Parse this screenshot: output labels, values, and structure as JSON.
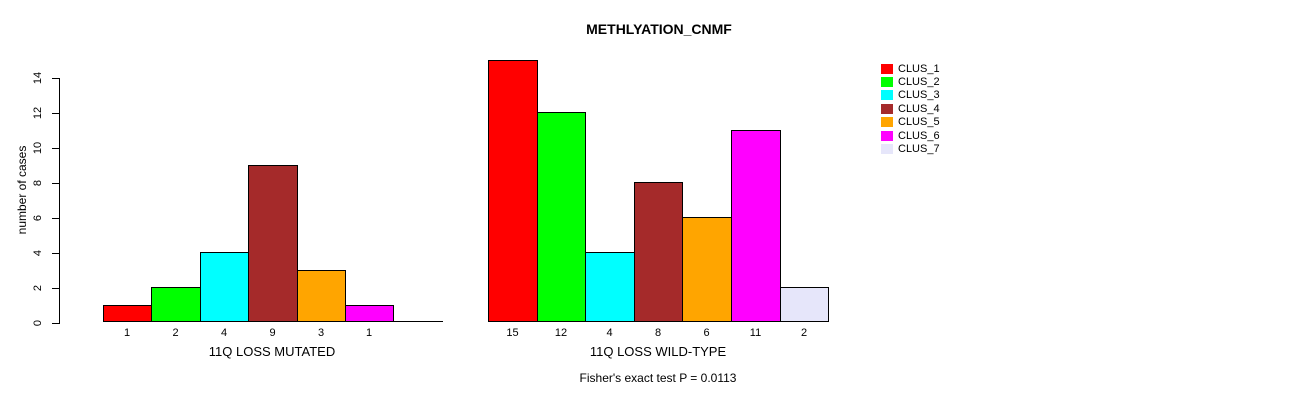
{
  "title": "METHLYATION_CNMF",
  "ylabel": "number of cases",
  "footnote": "Fisher's exact test P = 0.0113",
  "legend": {
    "position": "right",
    "entries": [
      {
        "label": "CLUS_1",
        "color": "#FF0000"
      },
      {
        "label": "CLUS_2",
        "color": "#00FF00"
      },
      {
        "label": "CLUS_3",
        "color": "#00FFFF"
      },
      {
        "label": "CLUS_4",
        "color": "#A52A2A"
      },
      {
        "label": "CLUS_5",
        "color": "#FFA500"
      },
      {
        "label": "CLUS_6",
        "color": "#FF00FF"
      },
      {
        "label": "CLUS_7",
        "color": "#E6E6FA"
      }
    ]
  },
  "chart_data": [
    {
      "type": "bar",
      "panel": "left",
      "xlabel": "11Q LOSS MUTATED",
      "ylabel": "number of cases",
      "categories": [
        "CLUS_1",
        "CLUS_2",
        "CLUS_3",
        "CLUS_4",
        "CLUS_5",
        "CLUS_6",
        "CLUS_7"
      ],
      "values": [
        1,
        2,
        4,
        9,
        3,
        1,
        0
      ],
      "bar_labels": [
        "1",
        "2",
        "4",
        "9",
        "3",
        "1",
        ""
      ],
      "colors": [
        "#FF0000",
        "#00FF00",
        "#00FFFF",
        "#A52A2A",
        "#FFA500",
        "#FF00FF",
        "#E6E6FA"
      ],
      "ylim": [
        0,
        14
      ],
      "yticks": [
        0,
        2,
        4,
        6,
        8,
        10,
        12,
        14
      ],
      "grid": false,
      "yaxis_shown": true
    },
    {
      "type": "bar",
      "panel": "right",
      "xlabel": "11Q LOSS WILD-TYPE",
      "ylabel": "number of cases",
      "categories": [
        "CLUS_1",
        "CLUS_2",
        "CLUS_3",
        "CLUS_4",
        "CLUS_5",
        "CLUS_6",
        "CLUS_7"
      ],
      "values": [
        15,
        12,
        4,
        8,
        6,
        11,
        2
      ],
      "bar_labels": [
        "15",
        "12",
        "4",
        "8",
        "6",
        "11",
        "2"
      ],
      "colors": [
        "#FF0000",
        "#00FF00",
        "#00FFFF",
        "#A52A2A",
        "#FFA500",
        "#FF00FF",
        "#E6E6FA"
      ],
      "ylim": [
        0,
        14
      ],
      "yticks": [
        0,
        2,
        4,
        6,
        8,
        10,
        12,
        14
      ],
      "grid": false,
      "yaxis_shown": false
    }
  ]
}
